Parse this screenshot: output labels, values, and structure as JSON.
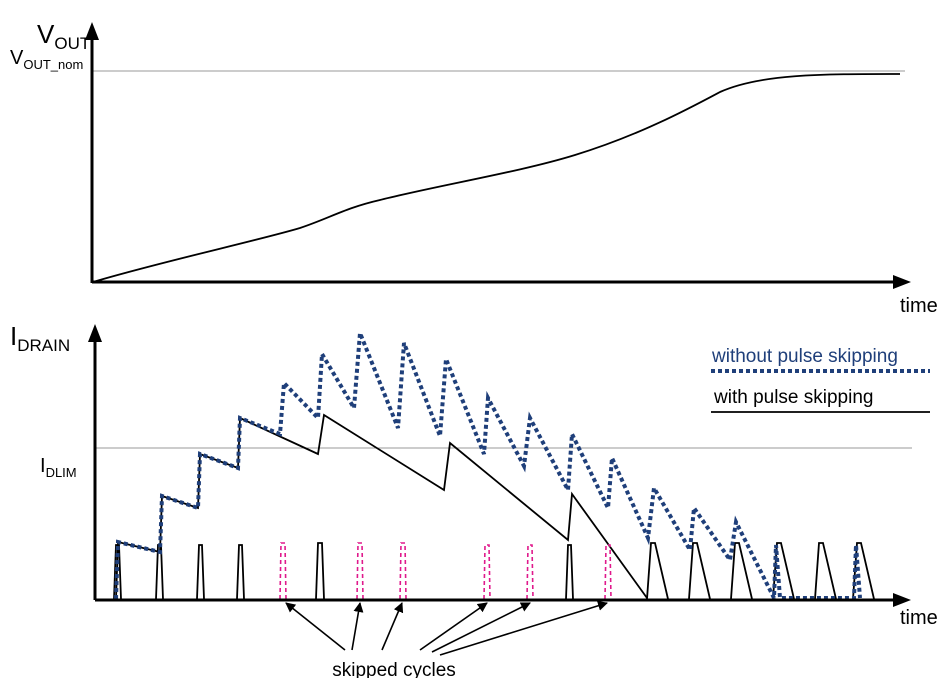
{
  "top_plot": {
    "y_axis_label": {
      "main": "V",
      "sub": "OUT"
    },
    "nominal_label": {
      "main": "V",
      "sub": "OUT_nom"
    },
    "x_axis_label": "time"
  },
  "bottom_plot": {
    "y_axis_label": {
      "main": "I",
      "sub": "DRAIN"
    },
    "limit_label": {
      "main": "I",
      "sub": "DLIM"
    },
    "x_axis_label": "time",
    "legend": {
      "without": "without pulse skipping",
      "with": "with pulse skipping"
    },
    "annotation": "skipped cycles"
  },
  "colors": {
    "axis": "#000000",
    "reference_line": "#999999",
    "without_pulse_skipping": "#1f3f7a",
    "skipped_pulse": "#e0198c"
  }
}
